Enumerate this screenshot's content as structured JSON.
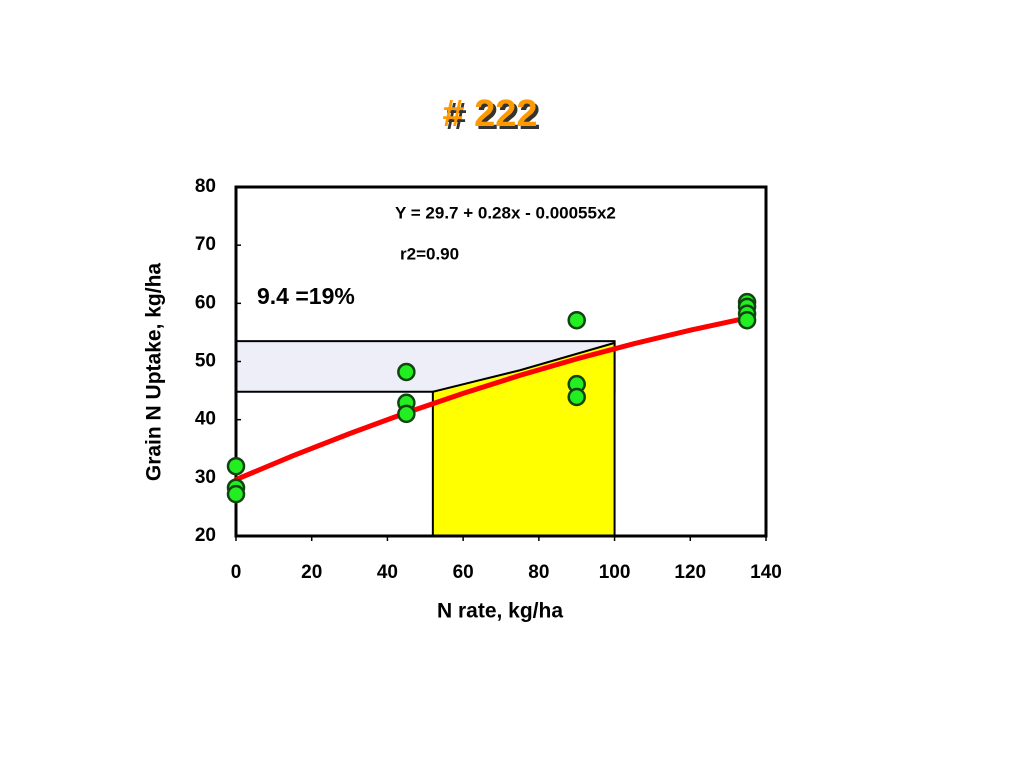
{
  "chart_data": {
    "type": "scatter",
    "title": "# 222",
    "xlabel": "N rate, kg/ha",
    "ylabel": "Grain N Uptake, kg/ha",
    "xlim": [
      0,
      140
    ],
    "xticks": [
      0,
      20,
      40,
      60,
      80,
      100,
      120,
      140
    ],
    "ylim": [
      20,
      80
    ],
    "yticks": [
      20,
      30,
      40,
      50,
      60,
      70,
      80
    ],
    "annotations": [
      "Y = 29.7 + 0.28x - 0.00055x2",
      "r2=0.90",
      "9.4 =19%"
    ],
    "series": [
      {
        "color": "#22ee22",
        "x": [
          0,
          0,
          0,
          45,
          45,
          45,
          90,
          90,
          90,
          135,
          135,
          135,
          135
        ],
        "values": [
          32.0,
          28.3,
          27.2,
          48.2,
          42.9,
          41.0,
          57.1,
          46.1,
          43.9,
          60.2,
          59.4,
          58.2,
          57.1
        ]
      }
    ],
    "fit": {
      "color": "#ff0000",
      "x": [
        0,
        15,
        30,
        45,
        60,
        75,
        90,
        105,
        120,
        135
      ],
      "values": [
        29.7,
        33.78,
        37.6,
        41.19,
        44.52,
        47.61,
        50.45,
        53.04,
        55.38,
        57.48
      ]
    },
    "band": {
      "color": "#eeeef8",
      "x": [
        0,
        100
      ],
      "y": [
        44.8,
        53.5
      ]
    },
    "region": {
      "color": "#ffff00",
      "x": [
        52,
        52,
        75,
        100,
        100
      ],
      "y": [
        20,
        44.8,
        48.5,
        53.2,
        20
      ]
    }
  }
}
